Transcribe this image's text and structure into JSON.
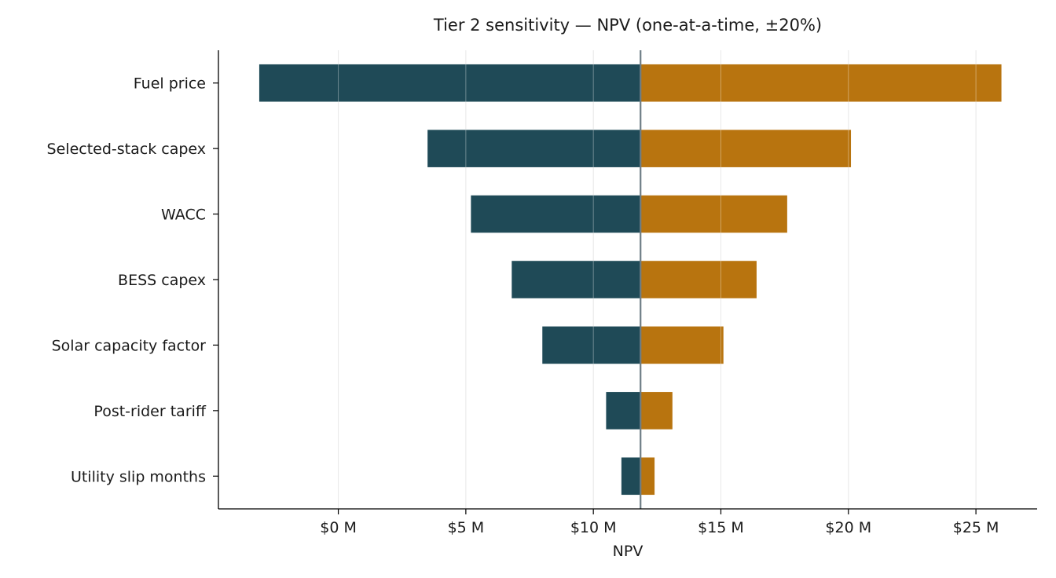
{
  "chart_data": {
    "type": "bar",
    "orientation": "horizontal",
    "title": "Tier 2 sensitivity — NPV (one-at-a-time, ±20%)",
    "xlabel": "NPV",
    "ylabel": "",
    "base_value": 11.85,
    "xlim": [
      -4.7,
      27.4
    ],
    "x_ticks": [
      0,
      5,
      10,
      15,
      20,
      25
    ],
    "x_tick_labels": [
      "$0 M",
      "$5 M",
      "$10 M",
      "$15 M",
      "$20 M",
      "$25 M"
    ],
    "categories": [
      "Fuel price",
      "Selected-stack capex",
      "WACC",
      "BESS capex",
      "Solar capacity factor",
      "Post-rider tariff",
      "Utility slip months"
    ],
    "low": [
      -3.1,
      3.5,
      5.2,
      6.8,
      8.0,
      10.5,
      11.1
    ],
    "high": [
      26.0,
      20.1,
      17.6,
      16.4,
      15.1,
      13.1,
      12.4
    ],
    "colors": {
      "low": "#1f4a57",
      "high": "#b8740f",
      "base_line": "#6e7e86",
      "grid": "#dddddd"
    },
    "grid": "vertical",
    "legend": "none"
  }
}
